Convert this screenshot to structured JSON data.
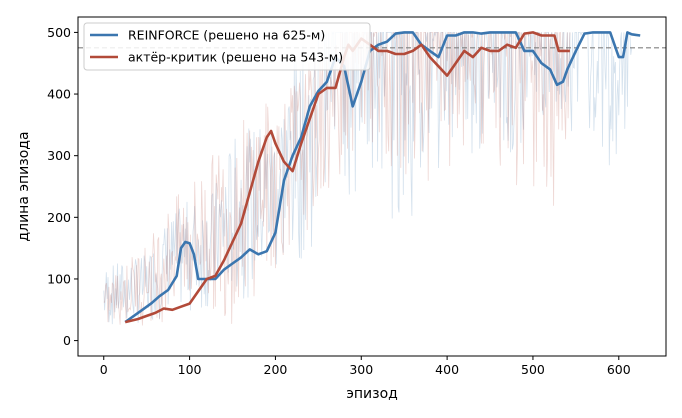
{
  "chart_data": {
    "type": "line",
    "xlabel": "эпизод",
    "ylabel": "длина эпизода",
    "xlim": [
      -30,
      655
    ],
    "ylim": [
      -25,
      525
    ],
    "xticks": [
      0,
      100,
      200,
      300,
      400,
      500,
      600
    ],
    "yticks": [
      0,
      100,
      200,
      300,
      400,
      500
    ],
    "grid": false,
    "legend_position": "top-left",
    "threshold": {
      "y": 475,
      "style": "dashed",
      "color": "#808080"
    },
    "series": [
      {
        "name": "REINFORCE (решено на 625-м)",
        "color": "#3b76af",
        "smoothed": [
          [
            25,
            30
          ],
          [
            35,
            40
          ],
          [
            45,
            50
          ],
          [
            55,
            60
          ],
          [
            65,
            72
          ],
          [
            75,
            82
          ],
          [
            85,
            105
          ],
          [
            90,
            150
          ],
          [
            95,
            160
          ],
          [
            100,
            158
          ],
          [
            105,
            140
          ],
          [
            110,
            100
          ],
          [
            120,
            100
          ],
          [
            130,
            100
          ],
          [
            140,
            115
          ],
          [
            150,
            125
          ],
          [
            160,
            135
          ],
          [
            170,
            148
          ],
          [
            180,
            140
          ],
          [
            190,
            145
          ],
          [
            200,
            175
          ],
          [
            210,
            260
          ],
          [
            220,
            300
          ],
          [
            230,
            330
          ],
          [
            240,
            380
          ],
          [
            250,
            405
          ],
          [
            260,
            420
          ],
          [
            270,
            460
          ],
          [
            280,
            445
          ],
          [
            290,
            380
          ],
          [
            300,
            420
          ],
          [
            310,
            470
          ],
          [
            320,
            480
          ],
          [
            330,
            485
          ],
          [
            340,
            498
          ],
          [
            350,
            500
          ],
          [
            360,
            500
          ],
          [
            370,
            480
          ],
          [
            380,
            470
          ],
          [
            390,
            460
          ],
          [
            400,
            495
          ],
          [
            410,
            495
          ],
          [
            420,
            500
          ],
          [
            430,
            500
          ],
          [
            440,
            498
          ],
          [
            450,
            500
          ],
          [
            460,
            500
          ],
          [
            470,
            500
          ],
          [
            480,
            500
          ],
          [
            490,
            470
          ],
          [
            500,
            470
          ],
          [
            510,
            450
          ],
          [
            520,
            440
          ],
          [
            528,
            415
          ],
          [
            535,
            420
          ],
          [
            540,
            440
          ],
          [
            550,
            470
          ],
          [
            560,
            498
          ],
          [
            570,
            500
          ],
          [
            580,
            500
          ],
          [
            590,
            500
          ],
          [
            600,
            460
          ],
          [
            605,
            460
          ],
          [
            610,
            500
          ],
          [
            615,
            497
          ],
          [
            625,
            495
          ]
        ],
        "raw_envelope": [
          [
            0,
            15,
            120
          ],
          [
            25,
            20,
            130
          ],
          [
            50,
            25,
            140
          ],
          [
            75,
            40,
            200
          ],
          [
            100,
            40,
            230
          ],
          [
            125,
            45,
            240
          ],
          [
            150,
            60,
            330
          ],
          [
            175,
            70,
            350
          ],
          [
            200,
            90,
            370
          ],
          [
            225,
            120,
            470
          ],
          [
            250,
            150,
            500
          ],
          [
            275,
            180,
            500
          ],
          [
            300,
            220,
            500
          ],
          [
            325,
            230,
            500
          ],
          [
            350,
            150,
            500
          ],
          [
            375,
            250,
            500
          ],
          [
            400,
            280,
            500
          ],
          [
            425,
            300,
            500
          ],
          [
            450,
            300,
            500
          ],
          [
            475,
            300,
            500
          ],
          [
            500,
            320,
            500
          ],
          [
            525,
            360,
            500
          ],
          [
            550,
            330,
            500
          ],
          [
            575,
            260,
            500
          ],
          [
            600,
            300,
            500
          ],
          [
            615,
            380,
            500
          ]
        ]
      },
      {
        "name": "актёр-критик (решено на 543-м)",
        "color": "#b24a39",
        "smoothed": [
          [
            25,
            30
          ],
          [
            40,
            35
          ],
          [
            50,
            40
          ],
          [
            60,
            45
          ],
          [
            70,
            52
          ],
          [
            80,
            50
          ],
          [
            90,
            55
          ],
          [
            100,
            60
          ],
          [
            110,
            80
          ],
          [
            120,
            100
          ],
          [
            130,
            105
          ],
          [
            140,
            130
          ],
          [
            150,
            160
          ],
          [
            160,
            190
          ],
          [
            170,
            240
          ],
          [
            180,
            290
          ],
          [
            190,
            330
          ],
          [
            195,
            340
          ],
          [
            200,
            320
          ],
          [
            210,
            290
          ],
          [
            220,
            275
          ],
          [
            230,
            320
          ],
          [
            240,
            360
          ],
          [
            250,
            400
          ],
          [
            260,
            410
          ],
          [
            270,
            410
          ],
          [
            280,
            460
          ],
          [
            285,
            480
          ],
          [
            290,
            470
          ],
          [
            300,
            490
          ],
          [
            310,
            480
          ],
          [
            320,
            470
          ],
          [
            330,
            470
          ],
          [
            340,
            465
          ],
          [
            350,
            465
          ],
          [
            360,
            470
          ],
          [
            370,
            480
          ],
          [
            380,
            460
          ],
          [
            390,
            445
          ],
          [
            400,
            430
          ],
          [
            410,
            450
          ],
          [
            420,
            470
          ],
          [
            430,
            460
          ],
          [
            440,
            475
          ],
          [
            450,
            470
          ],
          [
            460,
            470
          ],
          [
            470,
            480
          ],
          [
            480,
            475
          ],
          [
            490,
            498
          ],
          [
            500,
            500
          ],
          [
            510,
            495
          ],
          [
            520,
            495
          ],
          [
            525,
            495
          ],
          [
            530,
            470
          ],
          [
            535,
            470
          ],
          [
            543,
            470
          ]
        ],
        "raw_envelope": [
          [
            0,
            15,
            90
          ],
          [
            25,
            20,
            130
          ],
          [
            50,
            25,
            160
          ],
          [
            75,
            30,
            220
          ],
          [
            100,
            40,
            260
          ],
          [
            125,
            40,
            300
          ],
          [
            150,
            20,
            350
          ],
          [
            175,
            70,
            380
          ],
          [
            200,
            100,
            400
          ],
          [
            225,
            160,
            430
          ],
          [
            250,
            200,
            470
          ],
          [
            275,
            250,
            500
          ],
          [
            300,
            300,
            500
          ],
          [
            325,
            300,
            500
          ],
          [
            350,
            250,
            500
          ],
          [
            375,
            250,
            500
          ],
          [
            400,
            280,
            500
          ],
          [
            425,
            300,
            500
          ],
          [
            450,
            280,
            500
          ],
          [
            475,
            250,
            500
          ],
          [
            500,
            230,
            500
          ],
          [
            525,
            160,
            500
          ],
          [
            543,
            300,
            500
          ]
        ]
      }
    ]
  }
}
